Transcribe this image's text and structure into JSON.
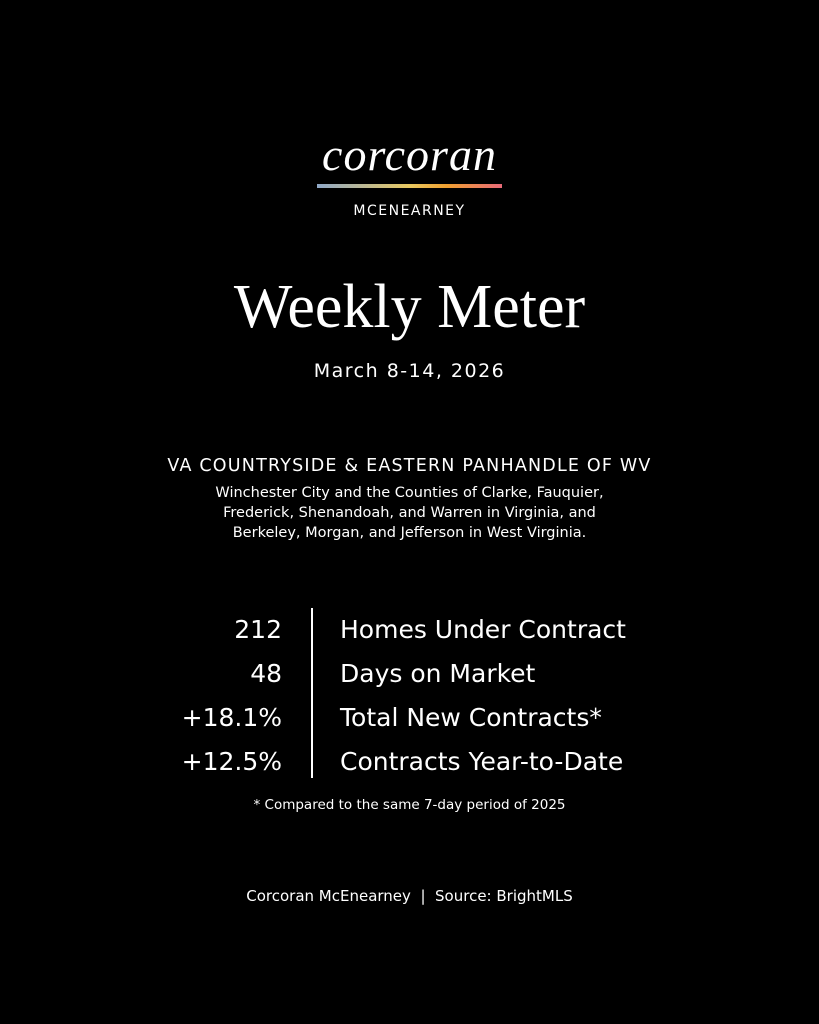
{
  "brand": {
    "logo": "corcoran",
    "subbrand": "MCENEARNEY",
    "gradient": [
      "#8fa8c8",
      "#e8c860",
      "#f0a030",
      "#e86a78"
    ]
  },
  "title": "Weekly Meter",
  "date": "March 8-14, 2026",
  "region": {
    "name": "VA COUNTRYSIDE & EASTERN PANHANDLE OF WV",
    "lines": [
      "Winchester City and the Counties of Clarke, Fauquier,",
      "Frederick, Shenandoah, and Warren in Virginia, and",
      "Berkeley, Morgan, and Jefferson in West Virginia."
    ]
  },
  "stats": [
    {
      "value": "212",
      "label": "Homes Under Contract"
    },
    {
      "value": "48",
      "label": "Days on Market"
    },
    {
      "value": "+18.1%",
      "label": "Total New Contracts*"
    },
    {
      "value": "+12.5%",
      "label": "Contracts Year-to-Date"
    }
  ],
  "note": "* Compared to the same 7-day period of 2025",
  "footer": "Corcoran McEnearney  |  Source: BrightMLS"
}
